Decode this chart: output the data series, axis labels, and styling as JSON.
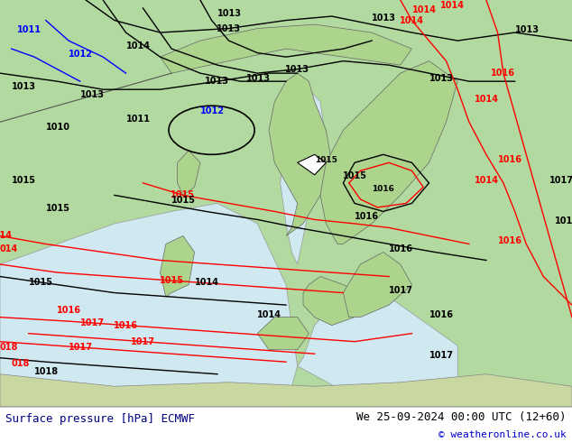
{
  "title_left": "Surface pressure [hPa] ECMWF",
  "title_right": "We 25-09-2024 00:00 UTC (12+60)",
  "copyright": "© weatheronline.co.uk",
  "bg_color": "#c8e6c9",
  "land_color": "#b8ddb8",
  "water_color": "#a8d4f5",
  "border_color": "#888888",
  "bottom_bar_color": "#ffffff",
  "bottom_bar_height": 0.08,
  "text_color_left": "#000080",
  "text_color_right": "#000000",
  "font_size_bottom": 9,
  "fig_width": 6.34,
  "fig_height": 4.9,
  "dpi": 100
}
